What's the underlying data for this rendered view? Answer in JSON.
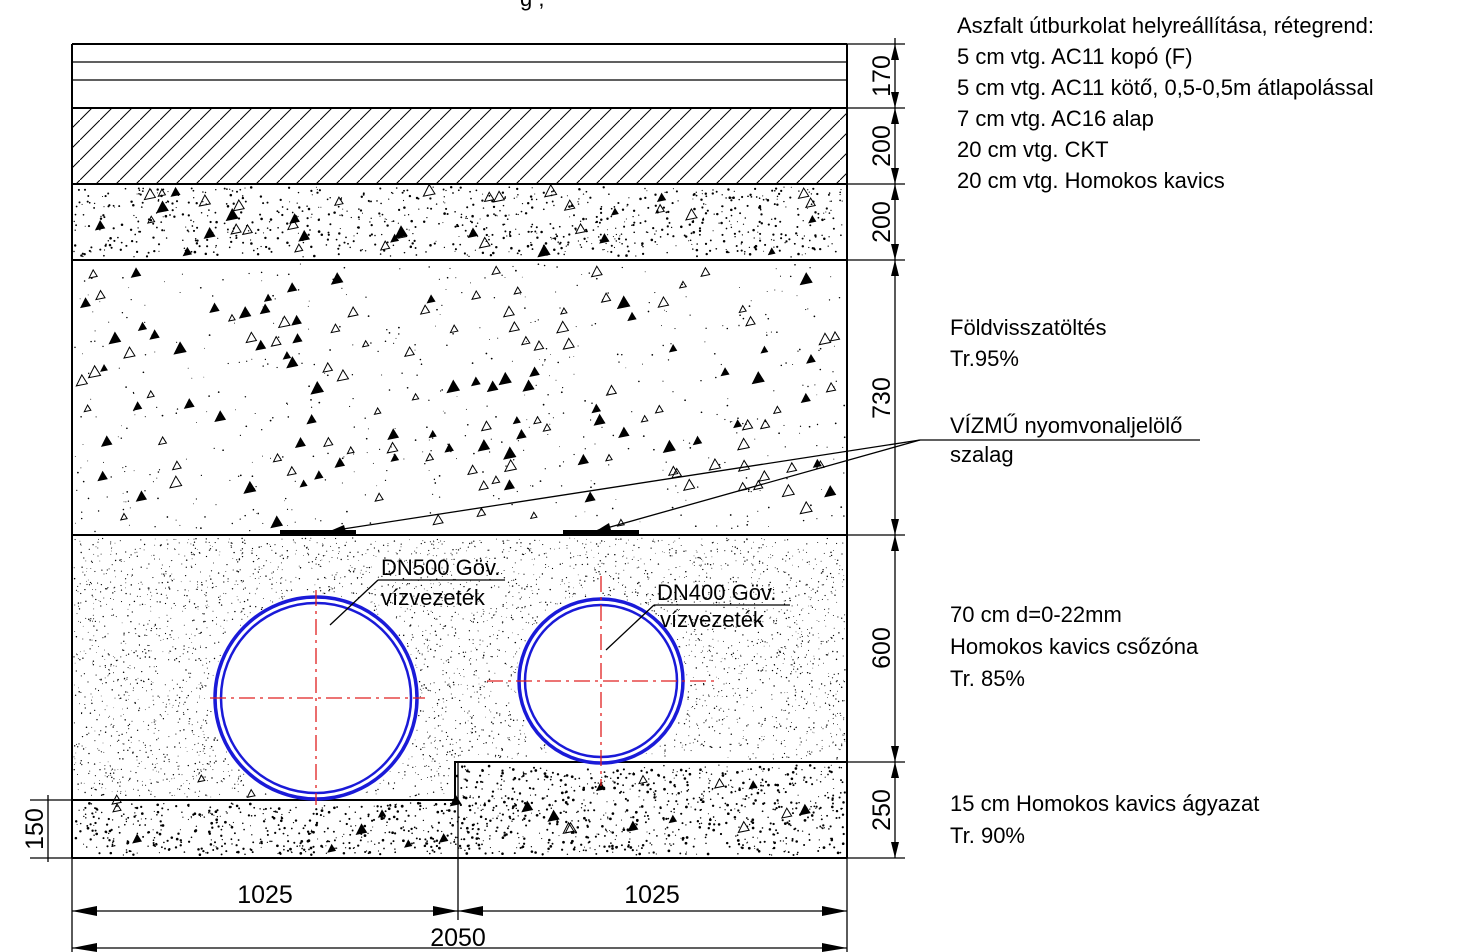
{
  "top_fragment": "g      ,",
  "layers": {
    "asphalt": {
      "title": "Aszfalt útburkolat helyreállítása, rétegrend:",
      "items": [
        "5 cm vtg. AC11 kopó (F)",
        "5 cm vtg. AC11 kötő, 0,5-0,5m átlapolással",
        "7 cm vtg. AC16 alap",
        "20 cm vtg. CKT",
        "20 cm vtg. Homokos kavics"
      ]
    },
    "backfill": {
      "line1": "Földvisszatöltés",
      "line2": "Tr.95%"
    },
    "tape": {
      "line1": "VÍZMŰ nyomvonaljelölő",
      "line2": "szalag"
    },
    "pipe_zone": {
      "line1": "70 cm d=0-22mm",
      "line2": "Homokos kavics csőzóna",
      "line3": "Tr. 85%"
    },
    "bedding": {
      "line1": "15 cm Homokos kavics ágyazat",
      "line2": "Tr. 90%"
    }
  },
  "pipes": {
    "left": {
      "line1": "DN500 Göv.",
      "line2": "vízvezeték"
    },
    "right": {
      "line1": "DN400 Göv.",
      "line2": "vízvezeték"
    }
  },
  "dimensions": {
    "right_side": [
      "170",
      "200",
      "200",
      "730",
      "600",
      "250"
    ],
    "left_side": "150",
    "bottom_left": "1025",
    "bottom_right": "1025",
    "bottom_total": "2050"
  },
  "colors": {
    "pipe": "#1a1ad8",
    "axis": "#e02020",
    "lines": "#000000"
  }
}
